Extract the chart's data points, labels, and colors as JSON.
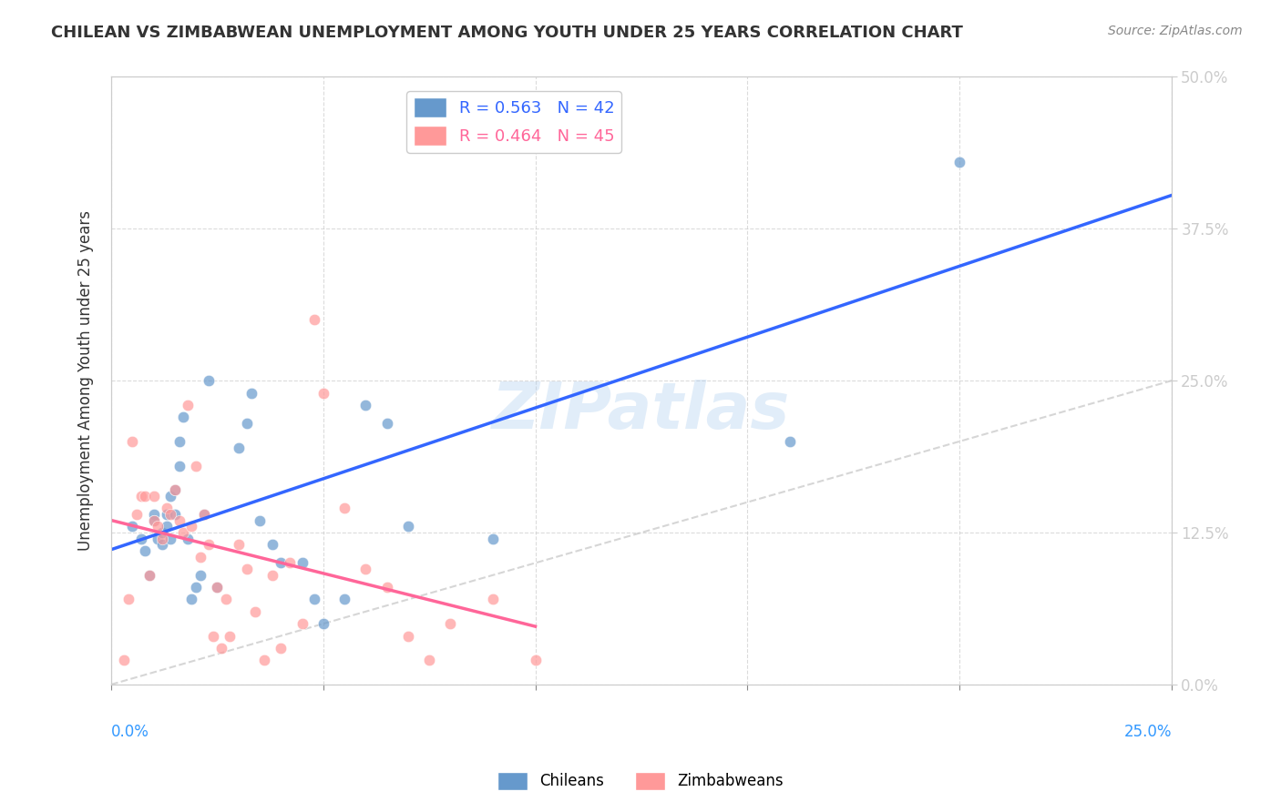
{
  "title": "CHILEAN VS ZIMBABWEAN UNEMPLOYMENT AMONG YOUTH UNDER 25 YEARS CORRELATION CHART",
  "source": "Source: ZipAtlas.com",
  "ylabel": "Unemployment Among Youth under 25 years",
  "ytick_values": [
    0,
    0.125,
    0.25,
    0.375,
    0.5
  ],
  "xmin": 0.0,
  "xmax": 0.25,
  "ymin": 0.0,
  "ymax": 0.5,
  "legend_chileans": "R = 0.563   N = 42",
  "legend_zimbabweans": "R = 0.464   N = 45",
  "color_chilean": "#6699CC",
  "color_zimbabwean": "#FF9999",
  "color_chilean_line": "#3366FF",
  "color_zimbabwean_line": "#FF6699",
  "color_diag_line": "#CCCCCC",
  "watermark": "ZIPatlas",
  "chilean_x": [
    0.005,
    0.007,
    0.008,
    0.009,
    0.01,
    0.01,
    0.011,
    0.012,
    0.012,
    0.013,
    0.013,
    0.014,
    0.014,
    0.015,
    0.015,
    0.016,
    0.016,
    0.017,
    0.018,
    0.019,
    0.02,
    0.021,
    0.022,
    0.023,
    0.025,
    0.03,
    0.032,
    0.033,
    0.035,
    0.038,
    0.04,
    0.045,
    0.048,
    0.05,
    0.055,
    0.06,
    0.065,
    0.07,
    0.09,
    0.095,
    0.16,
    0.2
  ],
  "chilean_y": [
    0.13,
    0.12,
    0.11,
    0.09,
    0.14,
    0.135,
    0.12,
    0.125,
    0.115,
    0.14,
    0.13,
    0.155,
    0.12,
    0.16,
    0.14,
    0.18,
    0.2,
    0.22,
    0.12,
    0.07,
    0.08,
    0.09,
    0.14,
    0.25,
    0.08,
    0.195,
    0.215,
    0.24,
    0.135,
    0.115,
    0.1,
    0.1,
    0.07,
    0.05,
    0.07,
    0.23,
    0.215,
    0.13,
    0.12,
    0.45,
    0.2,
    0.43
  ],
  "zimbabwean_x": [
    0.003,
    0.004,
    0.005,
    0.006,
    0.007,
    0.008,
    0.009,
    0.01,
    0.01,
    0.011,
    0.012,
    0.013,
    0.014,
    0.015,
    0.016,
    0.017,
    0.018,
    0.019,
    0.02,
    0.021,
    0.022,
    0.023,
    0.024,
    0.025,
    0.026,
    0.027,
    0.028,
    0.03,
    0.032,
    0.034,
    0.036,
    0.038,
    0.04,
    0.042,
    0.045,
    0.048,
    0.05,
    0.055,
    0.06,
    0.065,
    0.07,
    0.075,
    0.08,
    0.09,
    0.1
  ],
  "zimbabwean_y": [
    0.02,
    0.07,
    0.2,
    0.14,
    0.155,
    0.155,
    0.09,
    0.135,
    0.155,
    0.13,
    0.12,
    0.145,
    0.14,
    0.16,
    0.135,
    0.125,
    0.23,
    0.13,
    0.18,
    0.105,
    0.14,
    0.115,
    0.04,
    0.08,
    0.03,
    0.07,
    0.04,
    0.115,
    0.095,
    0.06,
    0.02,
    0.09,
    0.03,
    0.1,
    0.05,
    0.3,
    0.24,
    0.145,
    0.095,
    0.08,
    0.04,
    0.02,
    0.05,
    0.07,
    0.02
  ]
}
